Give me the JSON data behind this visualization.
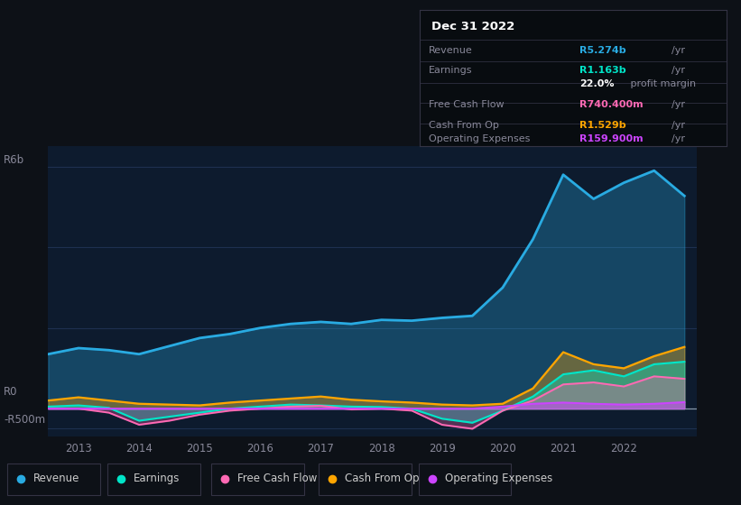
{
  "bg_color": "#0d1117",
  "plot_bg_color": "#0d1b2e",
  "title": "Dec 31 2022",
  "tooltip": {
    "Revenue": {
      "value": "R5.274b",
      "unit": "/yr",
      "color": "#29abe2"
    },
    "Earnings": {
      "value": "R1.163b",
      "unit": "/yr",
      "color": "#00e5c8"
    },
    "profit_margin": {
      "value": "22.0%",
      "text": "profit margin"
    },
    "Free Cash Flow": {
      "value": "R740.400m",
      "unit": "/yr",
      "color": "#ff69b4"
    },
    "Cash From Op": {
      "value": "R1.529b",
      "unit": "/yr",
      "color": "#ffa500"
    },
    "Operating Expenses": {
      "value": "R159.900m",
      "unit": "/yr",
      "color": "#cc44ff"
    }
  },
  "years": [
    2012.5,
    2013.0,
    2013.5,
    2014.0,
    2014.5,
    2015.0,
    2015.5,
    2016.0,
    2016.5,
    2017.0,
    2017.5,
    2018.0,
    2018.5,
    2019.0,
    2019.5,
    2020.0,
    2020.5,
    2021.0,
    2021.5,
    2022.0,
    2022.5,
    2023.0
  ],
  "revenue": [
    1.35,
    1.5,
    1.45,
    1.35,
    1.55,
    1.75,
    1.85,
    2.0,
    2.1,
    2.15,
    2.1,
    2.2,
    2.18,
    2.25,
    2.3,
    3.0,
    4.2,
    5.8,
    5.2,
    5.6,
    5.9,
    5.274
  ],
  "earnings": [
    0.05,
    0.08,
    0.02,
    -0.3,
    -0.2,
    -0.1,
    0.0,
    0.05,
    0.1,
    0.08,
    0.05,
    0.04,
    0.0,
    -0.25,
    -0.35,
    -0.05,
    0.3,
    0.85,
    0.95,
    0.8,
    1.1,
    1.163
  ],
  "fcf": [
    0.0,
    0.0,
    -0.1,
    -0.4,
    -0.3,
    -0.15,
    -0.05,
    0.0,
    0.05,
    0.07,
    -0.02,
    0.0,
    -0.05,
    -0.4,
    -0.5,
    -0.05,
    0.2,
    0.6,
    0.65,
    0.55,
    0.8,
    0.74
  ],
  "cashfromop": [
    0.2,
    0.28,
    0.2,
    0.12,
    0.1,
    0.08,
    0.15,
    0.2,
    0.25,
    0.3,
    0.22,
    0.18,
    0.15,
    0.1,
    0.08,
    0.12,
    0.5,
    1.4,
    1.1,
    1.0,
    1.3,
    1.529
  ],
  "opex": [
    0.0,
    0.0,
    0.0,
    0.0,
    0.0,
    0.0,
    0.0,
    0.0,
    0.0,
    0.0,
    0.0,
    0.0,
    0.0,
    0.0,
    0.0,
    0.05,
    0.12,
    0.15,
    0.12,
    0.1,
    0.12,
    0.16
  ],
  "revenue_color": "#29abe2",
  "earnings_color": "#00e5c8",
  "fcf_color": "#ff69b4",
  "cashfromop_color": "#ffa500",
  "opex_color": "#cc44ff",
  "ylabel_top": "R6b",
  "ylabel_zero": "R0",
  "ylabel_bottom": "-R500m",
  "xticklabels": [
    "2013",
    "2014",
    "2015",
    "2016",
    "2017",
    "2018",
    "2019",
    "2020",
    "2021",
    "2022"
  ],
  "ylim": [
    -0.7,
    6.5
  ],
  "grid_color": "#1e3050",
  "legend_labels": [
    "Revenue",
    "Earnings",
    "Free Cash Flow",
    "Cash From Op",
    "Operating Expenses"
  ]
}
